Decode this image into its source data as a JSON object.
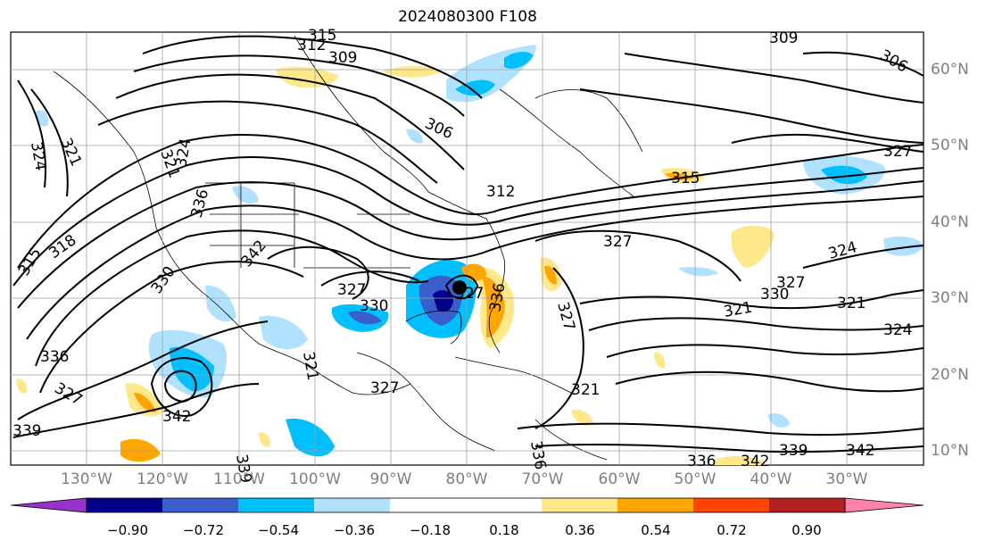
{
  "title": "2024080300 F108",
  "longitude_labels": [
    "130°W",
    "120°W",
    "110°W",
    "100°W",
    "90°W",
    "80°W",
    "70°W",
    "60°W",
    "50°W",
    "40°W",
    "30°W"
  ],
  "latitude_labels": [
    "60°N",
    "50°N",
    "40°N",
    "30°N",
    "20°N",
    "10°N"
  ],
  "colorbar": {
    "labels": [
      "−0.90",
      "−0.72",
      "−0.54",
      "−0.36",
      "−0.18",
      "0.18",
      "0.36",
      "0.54",
      "0.72",
      "0.90"
    ],
    "colors": [
      "#9932cc",
      "#00008b",
      "#3a5fcd",
      "#00bfff",
      "#b0e2ff",
      "#ffffff",
      "#ffe88a",
      "#ffa500",
      "#ff4500",
      "#b22222",
      "#ff82ab"
    ]
  },
  "contour_labels": [
    "315",
    "312",
    "309",
    "306",
    "309",
    "306",
    "327",
    "321",
    "324",
    "321",
    "324",
    "315",
    "318",
    "336",
    "327",
    "342",
    "339",
    "330",
    "342",
    "336",
    "327",
    "330",
    "327",
    "321",
    "315",
    "312",
    "327",
    "324",
    "327",
    "330",
    "321",
    "321",
    "324",
    "336",
    "327",
    "339",
    "342",
    "336",
    "321",
    "336",
    "327",
    "342",
    "339"
  ],
  "contour_color": "#000000",
  "storm_marker_color": "#000000"
}
